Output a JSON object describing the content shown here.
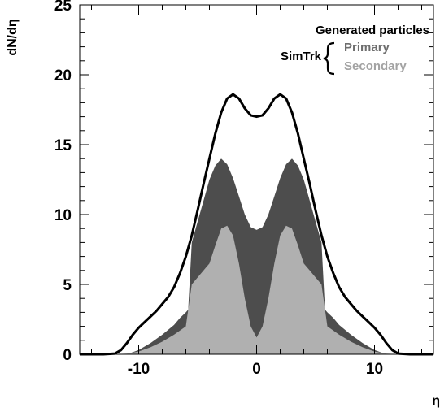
{
  "chart_data": {
    "type": "area",
    "xlabel": "η",
    "ylabel": "dN/dη",
    "xlim": [
      -15,
      15
    ],
    "ylim": [
      0,
      25
    ],
    "x_ticks": [
      "-10",
      "0",
      "10"
    ],
    "x_tick_values": [
      -10,
      0,
      10
    ],
    "y_ticks": [
      "0",
      "5",
      "10",
      "15",
      "20",
      "25"
    ],
    "y_tick_values": [
      0,
      5,
      10,
      15,
      20,
      25
    ],
    "grid": false,
    "legend": {
      "placement": "top-right",
      "header": "Generated particles",
      "group_label": "SimTrk",
      "items": [
        "Primary",
        "Secondary"
      ]
    },
    "series": [
      {
        "name": "Generated particles",
        "style": "line",
        "color": "#000000",
        "x": [
          -15,
          -13,
          -12,
          -11.5,
          -11,
          -10.5,
          -10,
          -9.5,
          -9,
          -8.5,
          -8,
          -7.5,
          -7,
          -6.5,
          -6,
          -5.5,
          -5,
          -4.5,
          -4,
          -3.5,
          -3,
          -2.5,
          -2,
          -1.5,
          -1,
          -0.5,
          0,
          0.5,
          1,
          1.5,
          2,
          2.5,
          3,
          3.5,
          4,
          4.5,
          5,
          5.5,
          6,
          6.5,
          7,
          7.5,
          8,
          8.5,
          9,
          9.5,
          10,
          10.5,
          11,
          11.5,
          12,
          13,
          15
        ],
        "y": [
          0,
          0,
          0.05,
          0.3,
          0.8,
          1.4,
          1.9,
          2.3,
          2.7,
          3.1,
          3.6,
          4.1,
          4.8,
          5.8,
          7.0,
          8.5,
          10.3,
          12.2,
          14.0,
          15.8,
          17.3,
          18.3,
          18.6,
          18.3,
          17.6,
          17.1,
          17.0,
          17.1,
          17.6,
          18.3,
          18.6,
          18.3,
          17.3,
          15.8,
          14.0,
          12.2,
          10.3,
          8.5,
          7.0,
          5.8,
          4.8,
          4.1,
          3.6,
          3.1,
          2.7,
          2.3,
          1.9,
          1.4,
          0.8,
          0.3,
          0.05,
          0,
          0
        ]
      },
      {
        "name": "Primary",
        "style": "area",
        "color": "#4d4d4d",
        "x": [
          -15,
          -11,
          -10,
          -9,
          -8,
          -7,
          -6.5,
          -6,
          -5.8,
          -5.5,
          -5,
          -4.5,
          -4,
          -3.5,
          -3,
          -2.5,
          -2,
          -1.5,
          -1,
          -0.5,
          0,
          0.5,
          1,
          1.5,
          2,
          2.5,
          3,
          3.5,
          4,
          4.5,
          5,
          5.5,
          5.8,
          6,
          6.5,
          7,
          8,
          9,
          10,
          11,
          15
        ],
        "y": [
          0,
          0,
          0.3,
          0.8,
          1.4,
          2.1,
          2.6,
          3.0,
          3.2,
          8.0,
          9.5,
          11.0,
          12.5,
          13.5,
          14.0,
          13.6,
          12.6,
          11.3,
          10.0,
          9.1,
          8.9,
          9.1,
          10.0,
          11.3,
          12.6,
          13.6,
          14.0,
          13.5,
          12.5,
          11.0,
          9.5,
          8.0,
          3.2,
          3.0,
          2.6,
          2.1,
          1.4,
          0.8,
          0.3,
          0,
          0
        ]
      },
      {
        "name": "Secondary",
        "style": "area",
        "color": "#b0b0b0",
        "x": [
          -15,
          -12,
          -11,
          -10,
          -9,
          -8,
          -7,
          -6.5,
          -6,
          -5.5,
          -5,
          -4.5,
          -4,
          -3.5,
          -3,
          -2.5,
          -2,
          -1.5,
          -1,
          -0.5,
          0,
          0.5,
          1,
          1.5,
          2,
          2.5,
          3,
          3.5,
          4,
          4.5,
          5,
          5.5,
          6,
          6.5,
          7,
          8,
          9,
          10,
          11,
          12,
          15
        ],
        "y": [
          0,
          0,
          0.05,
          0.2,
          0.5,
          0.9,
          1.4,
          1.7,
          2.0,
          5.0,
          5.5,
          6.0,
          6.5,
          7.8,
          9.0,
          9.2,
          8.5,
          6.5,
          4.0,
          2.0,
          1.2,
          2.0,
          4.0,
          6.5,
          8.5,
          9.2,
          9.0,
          7.8,
          6.5,
          6.0,
          5.5,
          5.0,
          2.0,
          1.7,
          1.4,
          0.9,
          0.5,
          0.2,
          0.05,
          0,
          0
        ]
      }
    ]
  }
}
